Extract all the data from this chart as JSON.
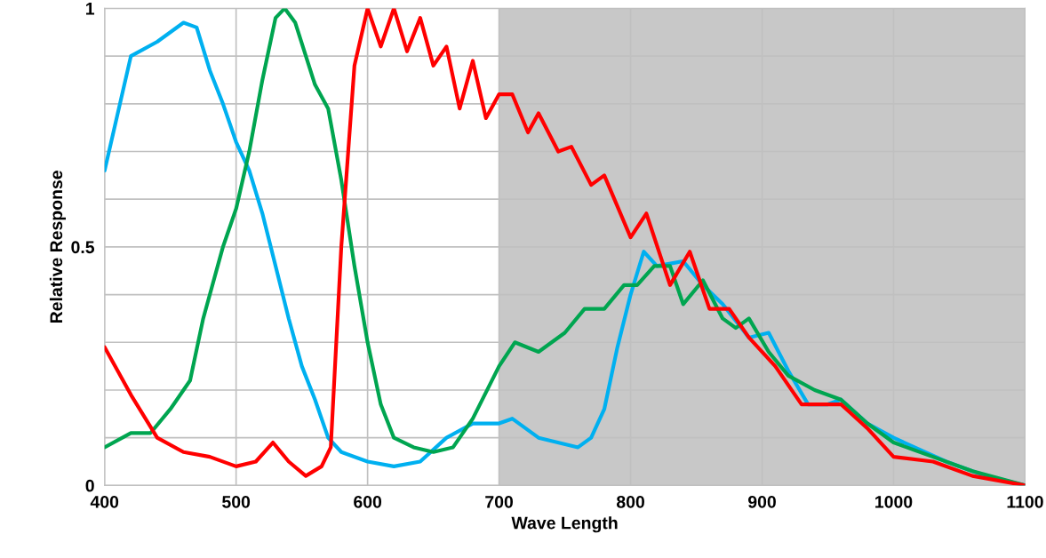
{
  "chart_data": {
    "type": "line",
    "xlabel": "Wave Length",
    "ylabel": "Relative Response",
    "xlim": [
      400,
      1100
    ],
    "xticks": [
      400,
      500,
      600,
      700,
      800,
      900,
      1000,
      1100
    ],
    "ylim": [
      0,
      1
    ],
    "yticks": [
      0,
      {
        "value": 0.1,
        "label": null
      },
      {
        "value": 0.2,
        "label": null
      },
      {
        "value": 0.3,
        "label": null
      },
      {
        "value": 0.4,
        "label": null
      },
      0.5,
      {
        "value": 0.6,
        "label": null
      },
      {
        "value": 0.7,
        "label": null
      },
      {
        "value": 0.8,
        "label": null
      },
      {
        "value": 0.9,
        "label": null
      },
      1
    ],
    "grid": true,
    "line_style": "solid",
    "marker": "none",
    "bands": [
      {
        "axis": "x",
        "from": 700,
        "to": 1100,
        "color": "#c8c8c8"
      }
    ],
    "series": [
      {
        "color": "#00b0f0",
        "x": [
          400,
          420,
          440,
          460,
          470,
          480,
          490,
          500,
          510,
          520,
          530,
          540,
          550,
          560,
          570,
          580,
          600,
          620,
          640,
          660,
          680,
          700,
          710,
          730,
          760,
          770,
          780,
          790,
          800,
          810,
          820,
          840,
          855,
          870,
          890,
          905,
          920,
          935,
          950,
          960,
          980,
          1000,
          1040,
          1070,
          1100
        ],
        "values": [
          0.66,
          0.9,
          0.93,
          0.97,
          0.96,
          0.87,
          0.8,
          0.72,
          0.66,
          0.57,
          0.46,
          0.35,
          0.25,
          0.18,
          0.1,
          0.07,
          0.05,
          0.04,
          0.05,
          0.1,
          0.13,
          0.13,
          0.14,
          0.1,
          0.08,
          0.1,
          0.16,
          0.29,
          0.4,
          0.49,
          0.46,
          0.47,
          0.42,
          0.38,
          0.31,
          0.32,
          0.24,
          0.17,
          0.17,
          0.18,
          0.13,
          0.1,
          0.05,
          0.02,
          0.0
        ]
      },
      {
        "color": "#00a550",
        "x": [
          400,
          420,
          435,
          450,
          465,
          475,
          490,
          500,
          510,
          520,
          530,
          537,
          545,
          560,
          570,
          580,
          590,
          600,
          610,
          620,
          635,
          650,
          665,
          680,
          700,
          712,
          730,
          750,
          765,
          780,
          795,
          805,
          818,
          830,
          840,
          855,
          870,
          880,
          890,
          905,
          920,
          940,
          960,
          980,
          1000,
          1030,
          1060,
          1100
        ],
        "values": [
          0.08,
          0.11,
          0.11,
          0.16,
          0.22,
          0.35,
          0.5,
          0.58,
          0.7,
          0.85,
          0.98,
          1.0,
          0.97,
          0.84,
          0.79,
          0.64,
          0.46,
          0.3,
          0.17,
          0.1,
          0.08,
          0.07,
          0.08,
          0.14,
          0.25,
          0.3,
          0.28,
          0.32,
          0.37,
          0.37,
          0.42,
          0.42,
          0.46,
          0.46,
          0.38,
          0.43,
          0.35,
          0.33,
          0.35,
          0.28,
          0.23,
          0.2,
          0.18,
          0.13,
          0.09,
          0.06,
          0.03,
          0.0
        ]
      },
      {
        "color": "#ff0000",
        "x": [
          400,
          420,
          440,
          460,
          480,
          500,
          515,
          528,
          540,
          553,
          565,
          572,
          580,
          590,
          600,
          610,
          620,
          630,
          640,
          650,
          660,
          670,
          680,
          690,
          700,
          710,
          722,
          730,
          745,
          755,
          770,
          780,
          800,
          812,
          830,
          845,
          860,
          875,
          890,
          910,
          930,
          960,
          980,
          1000,
          1030,
          1060,
          1100
        ],
        "values": [
          0.29,
          0.19,
          0.1,
          0.07,
          0.06,
          0.04,
          0.05,
          0.09,
          0.05,
          0.02,
          0.04,
          0.08,
          0.5,
          0.88,
          1.0,
          0.92,
          1.0,
          0.91,
          0.98,
          0.88,
          0.92,
          0.79,
          0.89,
          0.77,
          0.82,
          0.82,
          0.74,
          0.78,
          0.7,
          0.71,
          0.63,
          0.65,
          0.52,
          0.57,
          0.42,
          0.49,
          0.37,
          0.37,
          0.31,
          0.25,
          0.17,
          0.17,
          0.12,
          0.06,
          0.05,
          0.02,
          0.0
        ]
      }
    ]
  }
}
